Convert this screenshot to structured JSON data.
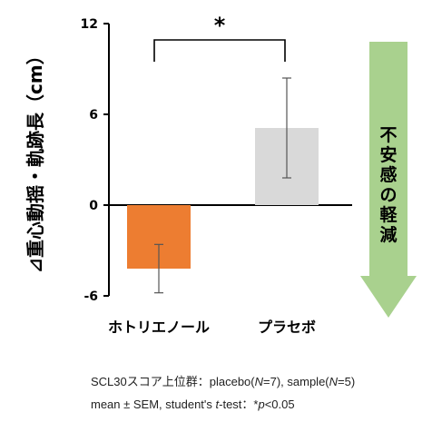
{
  "chart_data": {
    "type": "bar",
    "ylabel": "⊿重心動揺・軌跡長（cm）",
    "ylim": [
      -6,
      12
    ],
    "yticks": [
      -6,
      0,
      6,
      12
    ],
    "ytick_labels": [
      "-6",
      "0",
      "6",
      "12"
    ],
    "categories": [
      "ホトリエノール",
      "プラセボ"
    ],
    "values": [
      -4.2,
      5.1
    ],
    "errors": [
      1.6,
      3.3
    ],
    "bar_colors": [
      "#ed7d31",
      "#d9d9d9"
    ],
    "significance": {
      "pair": [
        0,
        1
      ],
      "label": "*"
    },
    "arrow": {
      "label": "不安感の軽減",
      "direction": "down",
      "color": "#a9d18e"
    }
  },
  "footnote": {
    "line1_prefix": "SCL30スコア上位群：placebo(",
    "line1_n1_label": "N",
    "line1_n1_value": "=7), sample(",
    "line1_n2_label": "N",
    "line1_suffix": "=5)",
    "line2_prefix": "mean ± SEM, student's ",
    "line2_t": "t",
    "line2_mid": "-test：*",
    "line2_p": "p",
    "line2_suffix": "<0.05"
  }
}
